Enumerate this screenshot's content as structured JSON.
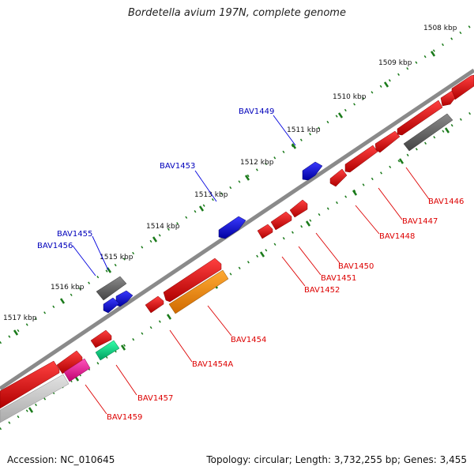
{
  "title": "Bordetella avium 197N, complete genome",
  "footer": {
    "accession_label": "Accession: NC_010645",
    "stats_label": "Topology: circular; Length: 3,732,255 bp; Genes: 3,455"
  },
  "scale_ticks": [
    "1508 kbp",
    "1509 kbp",
    "1510 kbp",
    "1511 kbp",
    "1512 kbp",
    "1513 kbp",
    "1514 kbp",
    "1515 kbp",
    "1516 kbp",
    "1517 kbp"
  ],
  "genes": [
    {
      "label": "BAV1446",
      "color": "#dd0000"
    },
    {
      "label": "BAV1447",
      "color": "#dd0000"
    },
    {
      "label": "BAV1448",
      "color": "#dd0000"
    },
    {
      "label": "BAV1449",
      "color": "#0000bb"
    },
    {
      "label": "BAV1450",
      "color": "#dd0000"
    },
    {
      "label": "BAV1451",
      "color": "#dd0000"
    },
    {
      "label": "BAV1452",
      "color": "#dd0000"
    },
    {
      "label": "BAV1453",
      "color": "#0000bb"
    },
    {
      "label": "BAV1454",
      "color": "#dd0000"
    },
    {
      "label": "BAV1454A",
      "color": "#dd0000"
    },
    {
      "label": "BAV1455",
      "color": "#0000bb"
    },
    {
      "label": "BAV1456",
      "color": "#0000bb"
    },
    {
      "label": "BAV1457",
      "color": "#dd0000"
    },
    {
      "label": "BAV1459",
      "color": "#dd0000"
    }
  ],
  "colors": {
    "forward_cds": "#e00000",
    "reverse_cds": "#1010e0",
    "backbone": "#888888",
    "tick": "#1a7a1a",
    "pseudo_grey": "#666666",
    "orange": "#ff8c00",
    "teal": "#00cc77",
    "magenta": "#ee2299",
    "light_grey": "#c8c8c8"
  }
}
